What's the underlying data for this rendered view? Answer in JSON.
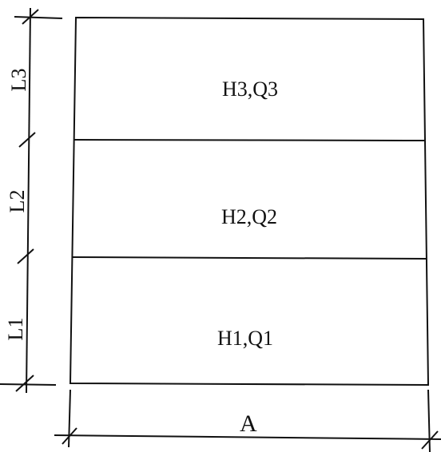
{
  "diagram": {
    "regions": [
      {
        "id": "layer-3",
        "label": "H3,Q3"
      },
      {
        "id": "layer-2",
        "label": "H2,Q2"
      },
      {
        "id": "layer-1",
        "label": "H1,Q1"
      }
    ],
    "vertical_dimensions": [
      {
        "id": "dim-l3",
        "label": "L3"
      },
      {
        "id": "dim-l2",
        "label": "L2"
      },
      {
        "id": "dim-l1",
        "label": "L1"
      }
    ],
    "horizontal_dimension": {
      "label": "A"
    }
  }
}
